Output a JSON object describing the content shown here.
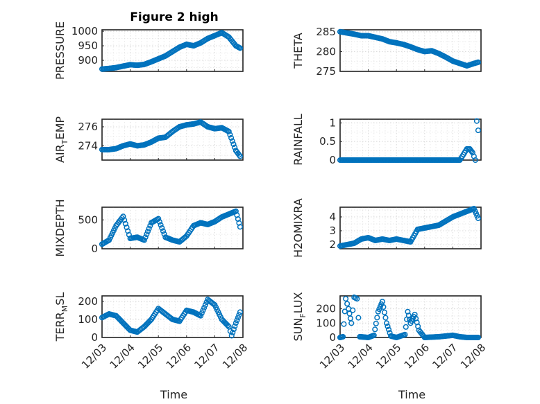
{
  "figure": {
    "title": "Figure 2 high"
  },
  "chart_data": [
    {
      "id": "pressure",
      "type": "scatter",
      "ylabel": "PRESSURE",
      "xlabel": "",
      "ylim": [
        862,
        1005
      ],
      "yticks": [
        1000,
        950,
        900
      ],
      "xlim": [
        0,
        5
      ],
      "x_tick_labels": [],
      "grid": true,
      "color": "#0072BD",
      "x": [
        0.0,
        0.25,
        0.5,
        0.75,
        1.0,
        1.25,
        1.5,
        1.75,
        2.0,
        2.25,
        2.5,
        2.75,
        3.0,
        3.25,
        3.5,
        3.75,
        4.0,
        4.25,
        4.5,
        4.75,
        4.9
      ],
      "y": [
        870,
        872,
        875,
        880,
        885,
        883,
        886,
        895,
        905,
        915,
        930,
        945,
        955,
        950,
        960,
        975,
        985,
        995,
        980,
        950,
        942
      ]
    },
    {
      "id": "theta",
      "type": "scatter",
      "ylabel": "THETA",
      "xlabel": "",
      "ylim": [
        275,
        285.5
      ],
      "yticks": [
        285,
        280,
        275
      ],
      "xlim": [
        0,
        5
      ],
      "x_tick_labels": [],
      "grid": true,
      "color": "#0072BD",
      "x": [
        0.0,
        0.25,
        0.5,
        0.75,
        1.0,
        1.25,
        1.5,
        1.75,
        2.0,
        2.25,
        2.5,
        2.75,
        3.0,
        3.25,
        3.5,
        3.75,
        4.0,
        4.25,
        4.5,
        4.75,
        4.9
      ],
      "y": [
        285,
        284.7,
        284.4,
        284.0,
        284.0,
        283.6,
        283.2,
        282.5,
        282.2,
        281.8,
        281.2,
        280.5,
        280.0,
        280.2,
        279.5,
        278.6,
        277.6,
        277.0,
        276.4,
        277.0,
        277.3
      ]
    },
    {
      "id": "air_temp",
      "type": "scatter",
      "ylabel": "AIR",
      "ylabel_sub": "T",
      "ylabel_after": "EMP",
      "xlabel": "",
      "ylim": [
        272.5,
        276.8
      ],
      "yticks": [
        276,
        274
      ],
      "xlim": [
        0,
        5
      ],
      "x_tick_labels": [],
      "grid": true,
      "color": "#0072BD",
      "x": [
        0.0,
        0.25,
        0.5,
        0.75,
        1.0,
        1.25,
        1.5,
        1.75,
        2.0,
        2.25,
        2.5,
        2.75,
        3.0,
        3.25,
        3.5,
        3.75,
        4.0,
        4.25,
        4.5,
        4.75,
        4.9
      ],
      "y": [
        273.6,
        273.6,
        273.7,
        274.0,
        274.2,
        274.0,
        274.1,
        274.4,
        274.8,
        274.9,
        275.5,
        276.0,
        276.2,
        276.3,
        276.5,
        276.0,
        275.8,
        275.9,
        275.5,
        273.5,
        272.9
      ]
    },
    {
      "id": "rainfall",
      "type": "scatter",
      "ylabel": "RAINFALL",
      "xlabel": "",
      "ylim": [
        0,
        1.1
      ],
      "yticks": [
        1,
        0.5,
        0
      ],
      "xlim": [
        0,
        5
      ],
      "x_tick_labels": [],
      "grid": true,
      "color": "#0072BD",
      "x": [
        0.0,
        0.25,
        0.5,
        0.75,
        1.0,
        1.25,
        1.5,
        1.75,
        2.0,
        2.25,
        2.5,
        2.75,
        3.0,
        3.25,
        3.5,
        3.75,
        4.0,
        4.25,
        4.5,
        4.6,
        4.7,
        4.8,
        4.85,
        4.9
      ],
      "y": [
        0,
        0,
        0,
        0,
        0,
        0,
        0,
        0,
        0,
        0,
        0,
        0,
        0,
        0,
        0,
        0,
        0,
        0,
        0.3,
        0.3,
        0.2,
        0,
        1.05,
        0.8
      ]
    },
    {
      "id": "mixdepth",
      "type": "scatter",
      "ylabel": "MIXDEPTH",
      "xlabel": "",
      "ylim": [
        0,
        720
      ],
      "yticks": [
        500,
        0
      ],
      "xlim": [
        0,
        5
      ],
      "x_tick_labels": [],
      "grid": true,
      "color": "#0072BD",
      "x": [
        0.0,
        0.25,
        0.5,
        0.75,
        1.0,
        1.25,
        1.5,
        1.75,
        2.0,
        2.25,
        2.5,
        2.75,
        3.0,
        3.25,
        3.5,
        3.75,
        4.0,
        4.25,
        4.5,
        4.75,
        4.9
      ],
      "y": [
        80,
        150,
        400,
        560,
        180,
        200,
        150,
        450,
        520,
        200,
        150,
        120,
        220,
        400,
        450,
        420,
        470,
        550,
        600,
        650,
        380
      ]
    },
    {
      "id": "h2omixra",
      "type": "scatter",
      "ylabel": "H2OMIXRA",
      "xlabel": "",
      "ylim": [
        1.7,
        4.7
      ],
      "yticks": [
        4,
        3,
        2
      ],
      "xlim": [
        0,
        5
      ],
      "x_tick_labels": [],
      "grid": true,
      "color": "#0072BD",
      "x": [
        0.0,
        0.25,
        0.5,
        0.75,
        1.0,
        1.25,
        1.5,
        1.75,
        2.0,
        2.25,
        2.5,
        2.75,
        3.0,
        3.25,
        3.5,
        3.75,
        4.0,
        4.25,
        4.5,
        4.75,
        4.9
      ],
      "y": [
        1.9,
        2.0,
        2.1,
        2.4,
        2.5,
        2.3,
        2.4,
        2.3,
        2.4,
        2.3,
        2.2,
        3.1,
        3.2,
        3.3,
        3.4,
        3.7,
        4.0,
        4.2,
        4.4,
        4.6,
        3.9
      ]
    },
    {
      "id": "terr_msl",
      "type": "scatter",
      "ylabel": "TERR",
      "ylabel_sub": "M",
      "ylabel_after": "SL",
      "xlabel": "Time",
      "ylim": [
        0,
        230
      ],
      "yticks": [
        200,
        100,
        0
      ],
      "xlim": [
        0,
        5
      ],
      "x_tick_labels": [
        "12/03",
        "12/04",
        "12/05",
        "12/06",
        "12/07",
        "12/08"
      ],
      "grid": true,
      "color": "#0072BD",
      "x": [
        0.0,
        0.25,
        0.5,
        0.75,
        1.0,
        1.25,
        1.5,
        1.75,
        2.0,
        2.25,
        2.5,
        2.75,
        3.0,
        3.25,
        3.5,
        3.75,
        4.0,
        4.25,
        4.5,
        4.6,
        4.75,
        4.9
      ],
      "y": [
        110,
        130,
        120,
        80,
        40,
        30,
        60,
        100,
        160,
        130,
        100,
        90,
        150,
        140,
        120,
        210,
        180,
        100,
        60,
        10,
        80,
        140
      ]
    },
    {
      "id": "sun_flux",
      "type": "scatter",
      "ylabel": "SUN",
      "ylabel_sub": "F",
      "ylabel_after": "LUX",
      "xlabel": "Time",
      "ylim": [
        0,
        290
      ],
      "yticks": [
        200,
        100,
        0
      ],
      "xlim": [
        0,
        5
      ],
      "x_tick_labels": [
        "12/03",
        "12/04",
        "12/05",
        "12/06",
        "12/07",
        "12/08"
      ],
      "grid": true,
      "color": "#0072BD",
      "x": [
        0.0,
        0.1,
        0.2,
        0.3,
        0.4,
        0.5,
        0.6,
        0.7,
        1.0,
        1.2,
        1.35,
        1.5,
        1.65,
        1.8,
        2.0,
        2.3,
        2.4,
        2.5,
        2.65,
        2.8,
        3.0,
        3.5,
        3.75,
        4.0,
        4.25,
        4.5,
        4.75,
        4.9
      ],
      "y": [
        0,
        5,
        270,
        200,
        100,
        280,
        270,
        5,
        0,
        15,
        180,
        250,
        100,
        10,
        0,
        20,
        180,
        100,
        160,
        50,
        0,
        5,
        10,
        15,
        5,
        0,
        0,
        0
      ]
    }
  ]
}
